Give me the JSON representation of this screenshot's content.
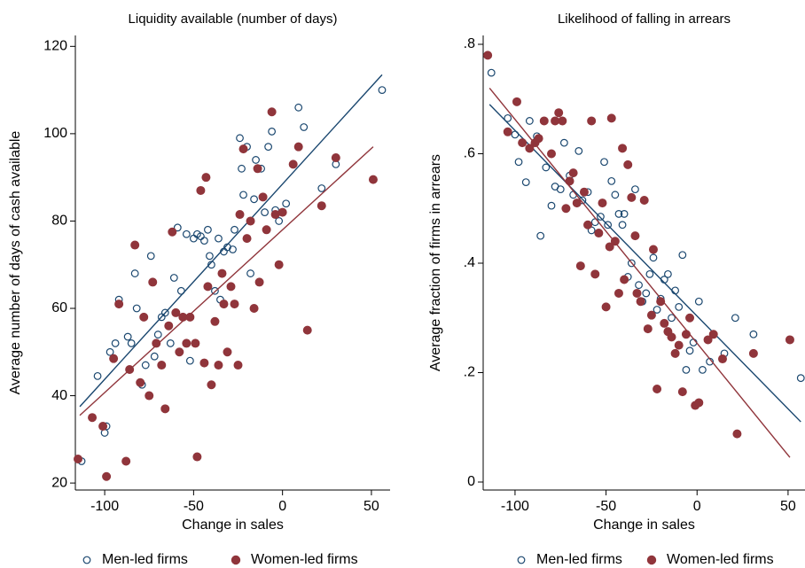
{
  "chart_data": [
    {
      "type": "scatter",
      "title": "Liquidity available (number of days)",
      "x_label": "Change in sales",
      "y_label": "Average number of days of cash available",
      "xlim": [
        -116.5,
        60.5
      ],
      "ylim": [
        18.4,
        122.5
      ],
      "xticks": [
        -100,
        -50,
        0,
        50
      ],
      "yticks": [
        20,
        40,
        60,
        80,
        100,
        120
      ],
      "series": [
        {
          "name": "Men-led firms",
          "color": "#1a476f",
          "filled": false,
          "x": [
            -113,
            -104,
            -100,
            -99,
            -97,
            -94,
            -92,
            -87,
            -85,
            -83,
            -82,
            -79,
            -77,
            -74,
            -72,
            -70,
            -68,
            -66,
            -63,
            -61,
            -59,
            -57,
            -54,
            -52,
            -50,
            -48,
            -46,
            -44,
            -42,
            -41,
            -40,
            -38,
            -36,
            -35,
            -33,
            -31,
            -28,
            -27,
            -24,
            -23,
            -22,
            -20,
            -18,
            -16,
            -15,
            -12,
            -10,
            -8,
            -6,
            -4,
            -2,
            2,
            9,
            12,
            22,
            30,
            56
          ],
          "values": [
            25,
            44.5,
            31.5,
            33,
            50,
            52,
            62,
            53.5,
            52,
            68,
            60,
            42.5,
            47,
            72,
            49,
            54,
            58,
            59,
            52,
            67,
            78.5,
            64,
            77,
            48,
            76,
            77,
            76.5,
            75.5,
            78,
            72,
            70,
            64,
            76,
            62,
            73,
            74,
            73.5,
            78,
            99,
            92,
            86,
            97,
            68,
            85,
            94,
            92,
            82,
            97,
            100.5,
            82.5,
            80,
            84,
            106,
            101.5,
            87.5,
            93,
            110
          ],
          "fit": {
            "x": [
              -114,
              56
            ],
            "values": [
              37.5,
              113.5
            ]
          }
        },
        {
          "name": "Women-led firms",
          "color": "#90353b",
          "filled": true,
          "x": [
            -115,
            -107,
            -101,
            -99,
            -95,
            -92,
            -88,
            -86,
            -83,
            -80,
            -78,
            -75,
            -73,
            -71,
            -68,
            -66,
            -64,
            -62,
            -60,
            -58,
            -56,
            -54,
            -52,
            -49,
            -48,
            -46,
            -44,
            -43,
            -42,
            -40,
            -38,
            -36,
            -34,
            -33,
            -31,
            -29,
            -27,
            -25,
            -24,
            -22,
            -20,
            -18,
            -16,
            -14,
            -13,
            -11,
            -9,
            -6,
            -4,
            -2,
            0,
            6,
            9,
            14,
            22,
            30,
            51
          ],
          "values": [
            25.5,
            35,
            33,
            21.5,
            48.5,
            61,
            25,
            46,
            74.5,
            43,
            58,
            40,
            66,
            52,
            47,
            37,
            56,
            77.5,
            59,
            50,
            58,
            52,
            58,
            52,
            26,
            87,
            47.5,
            90,
            65,
            42.5,
            57,
            47,
            68,
            61,
            50,
            65,
            61,
            47,
            81.5,
            96.5,
            76,
            80,
            60,
            92,
            66,
            85.5,
            78,
            105,
            81.5,
            70,
            82,
            93,
            97,
            55,
            83.5,
            94.5,
            89.5
          ],
          "fit": {
            "x": [
              -114,
              51
            ],
            "values": [
              35.5,
              97
            ]
          }
        }
      ]
    },
    {
      "type": "scatter",
      "title": "Likelihood of falling in arrears",
      "x_label": "Change in sales",
      "y_label": "Average fraction of firms in arrears",
      "xlim": [
        -117.5,
        59.3
      ],
      "ylim": [
        -0.0146,
        0.8162
      ],
      "xticks": [
        -100,
        -50,
        0,
        50
      ],
      "yticks": [
        0,
        {
          "value": 0.2,
          "label": ".2"
        },
        {
          "value": 0.4,
          "label": ".4"
        },
        {
          "value": 0.6,
          "label": ".6"
        },
        {
          "value": 0.8,
          "label": ".8"
        }
      ],
      "series": [
        {
          "name": "Men-led firms",
          "color": "#1a476f",
          "filled": false,
          "x": [
            -113,
            -104,
            -100,
            -98,
            -94,
            -92,
            -88,
            -86,
            -83,
            -80,
            -78,
            -75,
            -73,
            -70,
            -68,
            -65,
            -63,
            -60,
            -58,
            -56,
            -53,
            -51,
            -49,
            -47,
            -45,
            -43,
            -41,
            -40,
            -38,
            -36,
            -34,
            -32,
            -30,
            -28,
            -26,
            -24,
            -22,
            -20,
            -18,
            -16,
            -14,
            -12,
            -10,
            -8,
            -6,
            -4,
            -2,
            1,
            3,
            7,
            15,
            21,
            31,
            57
          ],
          "values": [
            0.748,
            0.665,
            0.635,
            0.585,
            0.548,
            0.66,
            0.632,
            0.45,
            0.575,
            0.505,
            0.54,
            0.535,
            0.62,
            0.56,
            0.525,
            0.605,
            0.515,
            0.53,
            0.46,
            0.475,
            0.485,
            0.585,
            0.47,
            0.55,
            0.525,
            0.49,
            0.47,
            0.49,
            0.375,
            0.4,
            0.535,
            0.36,
            0.33,
            0.345,
            0.38,
            0.41,
            0.315,
            0.335,
            0.37,
            0.38,
            0.3,
            0.35,
            0.32,
            0.415,
            0.205,
            0.24,
            0.255,
            0.33,
            0.205,
            0.22,
            0.235,
            0.3,
            0.27,
            0.19
          ],
          "fit": {
            "x": [
              -114,
              57
            ],
            "values": [
              0.69,
              0.11
            ]
          }
        },
        {
          "name": "Women-led firms",
          "color": "#90353b",
          "filled": true,
          "x": [
            -115,
            -104,
            -99,
            -96,
            -92,
            -89,
            -87,
            -84,
            -80,
            -78,
            -76,
            -74,
            -72,
            -70,
            -68,
            -66,
            -64,
            -62,
            -60,
            -58,
            -56,
            -54,
            -52,
            -50,
            -48,
            -47,
            -45,
            -43,
            -41,
            -40,
            -38,
            -36,
            -34,
            -33,
            -31,
            -29,
            -27,
            -25,
            -24,
            -22,
            -20,
            -18,
            -16,
            -14,
            -12,
            -10,
            -8,
            -6,
            -4,
            -1,
            1,
            6,
            9,
            14,
            22,
            31,
            51
          ],
          "values": [
            0.78,
            0.64,
            0.695,
            0.62,
            0.61,
            0.62,
            0.628,
            0.66,
            0.6,
            0.66,
            0.675,
            0.66,
            0.5,
            0.55,
            0.565,
            0.51,
            0.395,
            0.53,
            0.47,
            0.66,
            0.38,
            0.455,
            0.51,
            0.32,
            0.43,
            0.665,
            0.44,
            0.345,
            0.61,
            0.37,
            0.58,
            0.52,
            0.45,
            0.345,
            0.33,
            0.515,
            0.28,
            0.305,
            0.425,
            0.17,
            0.33,
            0.29,
            0.275,
            0.265,
            0.235,
            0.25,
            0.165,
            0.27,
            0.3,
            0.14,
            0.145,
            0.26,
            0.27,
            0.225,
            0.088,
            0.235,
            0.26
          ],
          "fit": {
            "x": [
              -114,
              51
            ],
            "values": [
              0.72,
              0.045
            ]
          }
        }
      ]
    }
  ]
}
